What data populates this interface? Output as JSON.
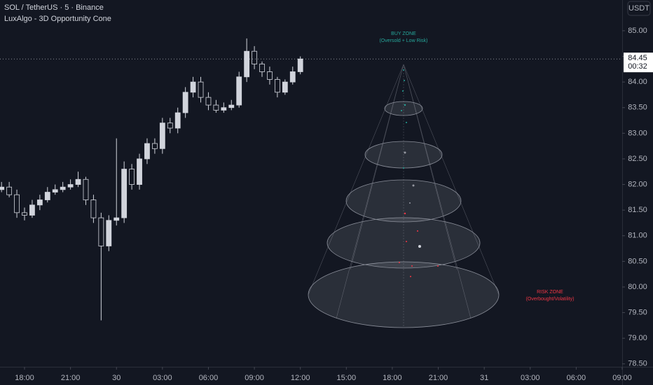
{
  "chart_data": {
    "type": "candlestick",
    "title": "SOL / TetherUS · 5 · Binance",
    "subtitle": "LuxAlgo - 3D Opportunity Cone",
    "currency": "USDT",
    "color": "#d1d4dc",
    "x": [
      -1.5,
      -1.0,
      -0.5,
      0.0,
      0.5,
      1.0,
      1.5,
      2.0,
      2.5,
      3.0,
      3.5,
      4.0,
      4.5,
      5.0,
      5.5,
      6.0,
      6.5,
      7.0,
      7.5,
      8.0,
      8.5,
      9.0,
      9.5,
      10.0,
      10.5,
      11.0,
      11.5,
      12.0,
      12.5,
      13.0,
      13.5,
      14.0,
      14.5,
      15.0,
      15.5,
      16.0,
      16.5,
      17.0,
      17.5,
      18.0
    ],
    "open": [
      81.9,
      81.95,
      81.8,
      81.45,
      81.4,
      81.6,
      81.7,
      81.85,
      81.9,
      81.95,
      82.0,
      82.1,
      81.7,
      81.35,
      80.8,
      81.3,
      81.35,
      82.3,
      82.0,
      82.5,
      82.8,
      82.7,
      83.2,
      83.1,
      83.4,
      83.8,
      84.0,
      83.7,
      83.55,
      83.45,
      83.5,
      83.55,
      84.1,
      84.6,
      84.35,
      84.2,
      84.05,
      83.8,
      84.0,
      84.2
    ],
    "high": [
      82.05,
      82.05,
      81.9,
      81.55,
      81.7,
      81.8,
      81.95,
      82.0,
      82.05,
      82.1,
      82.25,
      82.15,
      81.8,
      81.45,
      81.4,
      82.9,
      82.45,
      82.4,
      82.6,
      82.9,
      82.9,
      83.3,
      83.3,
      83.5,
      83.9,
      84.1,
      84.1,
      83.8,
      83.65,
      83.6,
      83.65,
      84.2,
      84.85,
      84.7,
      84.4,
      84.3,
      84.1,
      84.05,
      84.3,
      84.5
    ],
    "low": [
      81.85,
      81.75,
      81.35,
      81.3,
      81.35,
      81.5,
      81.65,
      81.8,
      81.85,
      81.9,
      81.95,
      81.6,
      81.25,
      79.35,
      80.7,
      81.2,
      81.25,
      81.9,
      81.9,
      82.4,
      82.6,
      82.6,
      83.0,
      83.0,
      83.3,
      83.7,
      83.6,
      83.45,
      83.4,
      83.4,
      83.45,
      83.5,
      84.0,
      84.25,
      84.1,
      83.95,
      83.7,
      83.75,
      83.95,
      84.15
    ],
    "close": [
      81.95,
      81.8,
      81.45,
      81.4,
      81.6,
      81.7,
      81.85,
      81.9,
      81.95,
      82.0,
      82.1,
      81.7,
      81.35,
      80.8,
      81.3,
      81.35,
      82.3,
      82.0,
      82.5,
      82.8,
      82.7,
      83.2,
      83.1,
      83.4,
      83.8,
      84.0,
      83.7,
      83.55,
      83.45,
      83.5,
      83.55,
      84.1,
      84.6,
      84.35,
      84.2,
      84.05,
      83.8,
      84.0,
      84.2,
      84.45
    ],
    "xlim": [
      -1.6,
      39.0
    ],
    "xticks": [
      {
        "value": 0,
        "label": "18:00"
      },
      {
        "value": 3,
        "label": "21:00"
      },
      {
        "value": 6,
        "label": "30"
      },
      {
        "value": 9,
        "label": "03:00"
      },
      {
        "value": 12,
        "label": "06:00"
      },
      {
        "value": 15,
        "label": "09:00"
      },
      {
        "value": 18,
        "label": "12:00"
      },
      {
        "value": 21,
        "label": "15:00"
      },
      {
        "value": 24,
        "label": "18:00"
      },
      {
        "value": 27,
        "label": "21:00"
      },
      {
        "value": 30,
        "label": "31"
      },
      {
        "value": 33,
        "label": "03:00"
      },
      {
        "value": 36,
        "label": "06:00"
      },
      {
        "value": 39,
        "label": "09:00"
      }
    ],
    "ylim": [
      78.47,
      85.6
    ],
    "yticks": [
      {
        "value": 78.5,
        "label": "78.50"
      },
      {
        "value": 79,
        "label": "79.00"
      },
      {
        "value": 79.5,
        "label": "79.50"
      },
      {
        "value": 80,
        "label": "80.00"
      },
      {
        "value": 80.5,
        "label": "80.50"
      },
      {
        "value": 81,
        "label": "81.00"
      },
      {
        "value": 81.5,
        "label": "81.50"
      },
      {
        "value": 82,
        "label": "82.00"
      },
      {
        "value": 82.5,
        "label": "82.50"
      },
      {
        "value": 83,
        "label": "83.00"
      },
      {
        "value": 83.5,
        "label": "83.50"
      },
      {
        "value": 84,
        "label": "84.00"
      },
      {
        "value": 84.5,
        "label": "84.50"
      },
      {
        "value": 85,
        "label": "85.00"
      }
    ],
    "last_price": {
      "value": 84.45,
      "label": "84.45"
    },
    "countdown": "00:32",
    "annotations": [
      "BUY ZONE",
      "(Oversold + Low Risk)",
      "RISK ZONE",
      "(Overbought/Volatility)"
    ]
  }
}
